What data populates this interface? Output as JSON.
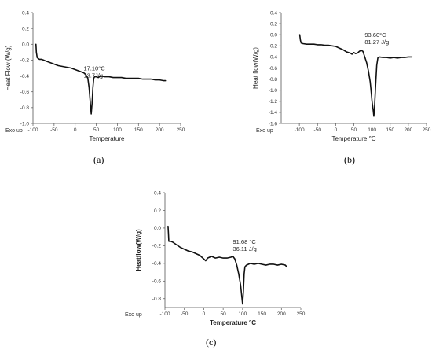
{
  "captions": [
    "(a)",
    "(b)",
    "(c)"
  ],
  "chart_data": [
    {
      "type": "line",
      "panel": "a",
      "xlabel": "Temperature",
      "ylabel": "Heat Flow (W/g)",
      "exo_label": "Exo up",
      "xlim": [
        -100,
        250
      ],
      "ylim": [
        -1.0,
        0.4
      ],
      "xticks": [
        -100,
        -50,
        0,
        50,
        100,
        150,
        200,
        250
      ],
      "yticks": [
        0.4,
        0.2,
        0.0,
        -0.2,
        -0.4,
        -0.6,
        -0.8,
        -1.0
      ],
      "annotation": [
        "17.10°C",
        "13.7J/g"
      ],
      "annotation_at": [
        20,
        -0.33
      ],
      "series": [
        {
          "x": [
            -93,
            -92,
            -90,
            -85,
            -80,
            -75,
            -70,
            -60,
            -50,
            -40,
            -30,
            -20,
            -10,
            0,
            10,
            20,
            25,
            30,
            33,
            36,
            38,
            40,
            42,
            44,
            46,
            50,
            55,
            60,
            70,
            80,
            90,
            100,
            110,
            120,
            130,
            140,
            150,
            160,
            170,
            180,
            190,
            200,
            210,
            214
          ],
          "y": [
            0.0,
            -0.1,
            -0.17,
            -0.19,
            -0.19,
            -0.2,
            -0.21,
            -0.23,
            -0.25,
            -0.27,
            -0.28,
            -0.29,
            -0.3,
            -0.32,
            -0.34,
            -0.36,
            -0.38,
            -0.43,
            -0.55,
            -0.75,
            -0.88,
            -0.75,
            -0.55,
            -0.43,
            -0.41,
            -0.41,
            -0.42,
            -0.4,
            -0.41,
            -0.41,
            -0.42,
            -0.42,
            -0.42,
            -0.43,
            -0.43,
            -0.43,
            -0.43,
            -0.44,
            -0.44,
            -0.44,
            -0.45,
            -0.45,
            -0.46,
            -0.46
          ]
        }
      ]
    },
    {
      "type": "line",
      "panel": "b",
      "xlabel": "Temperature °C",
      "ylabel": "Heat flow(W/g)",
      "exo_label": "Exo up",
      "xlim": [
        -150,
        250
      ],
      "ylim": [
        -1.6,
        0.4
      ],
      "xticks": [
        -100,
        -50,
        0,
        50,
        100,
        150,
        200,
        250
      ],
      "yticks": [
        0.4,
        0.2,
        0.0,
        -0.2,
        -0.4,
        -0.6,
        -0.8,
        -1.0,
        -1.2,
        -1.4,
        -1.6
      ],
      "annotation": [
        "93.60°C",
        "81.27 J/g"
      ],
      "annotation_at": [
        80,
        -0.04
      ],
      "series": [
        {
          "x": [
            -99,
            -97,
            -95,
            -90,
            -80,
            -70,
            -60,
            -50,
            -40,
            -30,
            -20,
            -10,
            0,
            10,
            20,
            30,
            40,
            45,
            50,
            55,
            60,
            65,
            70,
            75,
            80,
            85,
            90,
            95,
            98,
            100,
            103,
            105,
            107,
            110,
            113,
            116,
            120,
            130,
            140,
            150,
            160,
            170,
            180,
            190,
            200,
            210
          ],
          "y": [
            0.0,
            -0.1,
            -0.15,
            -0.16,
            -0.17,
            -0.17,
            -0.17,
            -0.18,
            -0.18,
            -0.19,
            -0.19,
            -0.2,
            -0.21,
            -0.24,
            -0.27,
            -0.31,
            -0.33,
            -0.35,
            -0.32,
            -0.34,
            -0.33,
            -0.3,
            -0.28,
            -0.3,
            -0.4,
            -0.5,
            -0.65,
            -0.85,
            -1.05,
            -1.2,
            -1.35,
            -1.47,
            -1.3,
            -0.9,
            -0.55,
            -0.42,
            -0.4,
            -0.41,
            -0.41,
            -0.42,
            -0.41,
            -0.42,
            -0.41,
            -0.41,
            -0.4,
            -0.4
          ]
        }
      ]
    },
    {
      "type": "line",
      "panel": "c",
      "xlabel": "Temperature °C",
      "ylabel": "Heatflow(W/g)",
      "exo_label": "Exo up",
      "xlim": [
        -100,
        250
      ],
      "ylim": [
        -0.9,
        0.4
      ],
      "xticks": [
        -100,
        -50,
        0,
        50,
        100,
        150,
        200,
        250
      ],
      "yticks": [
        0.4,
        0.2,
        0.0,
        -0.2,
        -0.4,
        -0.6,
        -0.8
      ],
      "annotation": [
        "91.68 °C",
        "36.11 J/g"
      ],
      "annotation_at": [
        75,
        -0.18
      ],
      "series": [
        {
          "x": [
            -92,
            -91,
            -90,
            -85,
            -80,
            -70,
            -60,
            -50,
            -40,
            -30,
            -20,
            -10,
            0,
            5,
            10,
            20,
            30,
            40,
            50,
            60,
            70,
            75,
            80,
            85,
            90,
            95,
            98,
            100,
            102,
            104,
            106,
            110,
            115,
            120,
            130,
            140,
            150,
            160,
            170,
            180,
            190,
            200,
            210,
            214
          ],
          "y": [
            0.02,
            -0.06,
            -0.15,
            -0.15,
            -0.16,
            -0.19,
            -0.22,
            -0.24,
            -0.26,
            -0.27,
            -0.29,
            -0.31,
            -0.35,
            -0.37,
            -0.34,
            -0.32,
            -0.34,
            -0.33,
            -0.34,
            -0.34,
            -0.33,
            -0.32,
            -0.35,
            -0.42,
            -0.52,
            -0.65,
            -0.78,
            -0.86,
            -0.72,
            -0.52,
            -0.44,
            -0.42,
            -0.41,
            -0.4,
            -0.41,
            -0.4,
            -0.41,
            -0.42,
            -0.41,
            -0.41,
            -0.42,
            -0.41,
            -0.42,
            -0.44
          ]
        }
      ]
    }
  ]
}
